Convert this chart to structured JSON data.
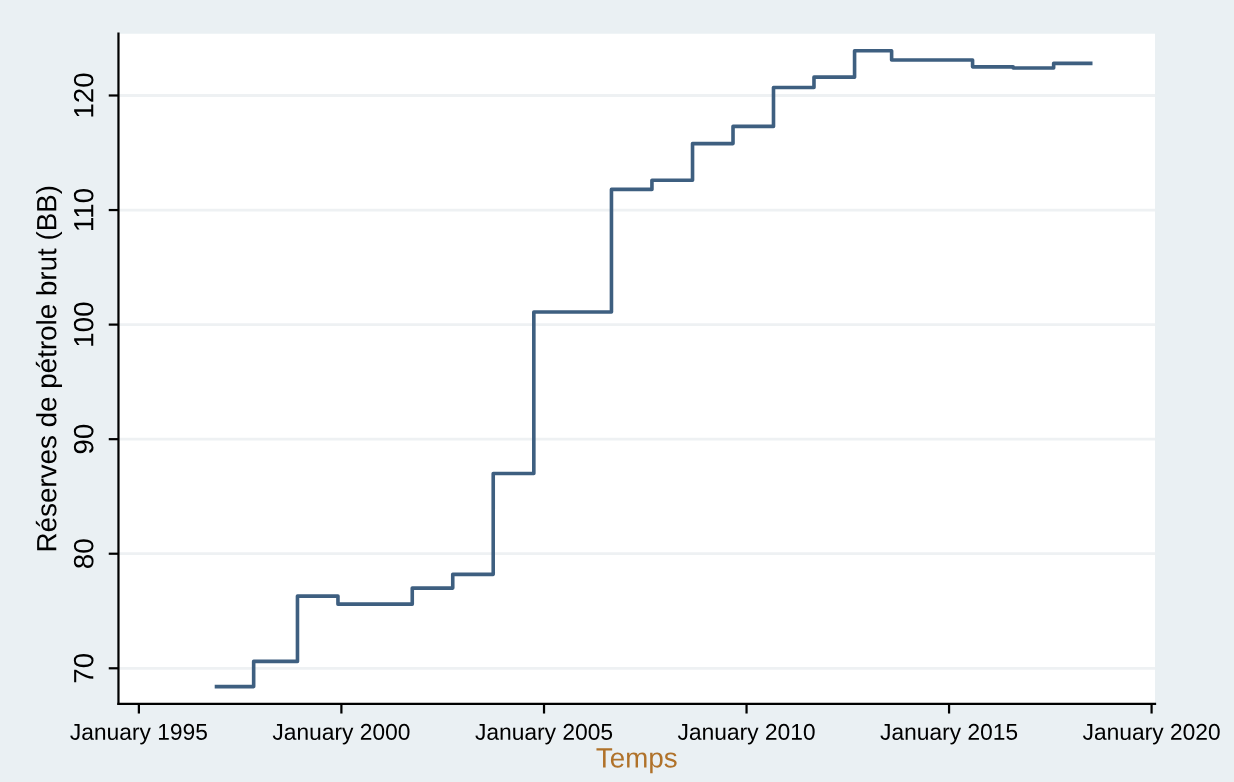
{
  "chart_data": {
    "type": "step",
    "xlabel": "Temps",
    "ylabel": "Réserves de pétrole brut (BB)",
    "x": [
      "1996-12",
      "1997-11",
      "1998-12",
      "1999-12",
      "2001-10",
      "2002-10",
      "2003-10",
      "2004-10",
      "2006-09",
      "2007-09",
      "2008-09",
      "2009-09",
      "2010-09",
      "2011-09",
      "2012-09",
      "2013-08",
      "2015-08",
      "2016-08",
      "2017-08",
      "2018-07"
    ],
    "series": [
      {
        "color": "#3e5f80",
        "values": [
          68.4,
          70.6,
          76.3,
          75.6,
          77.0,
          78.2,
          87.0,
          101.1,
          111.8,
          112.6,
          115.8,
          117.3,
          120.7,
          121.6,
          123.9,
          123.1,
          122.5,
          122.4,
          122.8,
          122.8
        ]
      }
    ],
    "xlim": [
      "1994-07",
      "2020-02"
    ],
    "xticks": [
      {
        "value": "1995-01",
        "label": "January 1995"
      },
      {
        "value": "2000-01",
        "label": "January 2000"
      },
      {
        "value": "2005-01",
        "label": "January 2005"
      },
      {
        "value": "2010-01",
        "label": "January 2010"
      },
      {
        "value": "2015-01",
        "label": "January 2015"
      },
      {
        "value": "2020-01",
        "label": "January 2020"
      }
    ],
    "ylim": [
      66.9,
      125.4
    ],
    "yticks": [
      70,
      80,
      90,
      100,
      110,
      120
    ],
    "grid": "y"
  }
}
